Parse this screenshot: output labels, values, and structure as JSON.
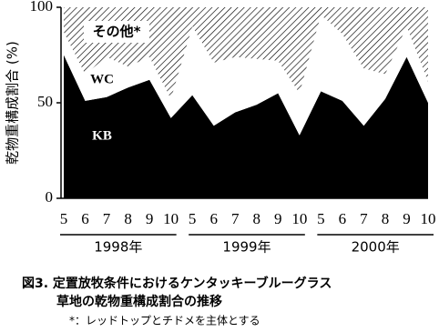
{
  "chart_data": {
    "type": "stacked-area",
    "y_label": "乾物重構成割合 (%)",
    "categories": [
      "5",
      "6",
      "7",
      "8",
      "9",
      "10",
      "5",
      "6",
      "7",
      "8",
      "9",
      "10",
      "5",
      "6",
      "7",
      "8",
      "9",
      "10"
    ],
    "group_labels": [
      "1998年",
      "1999年",
      "2000年"
    ],
    "series": [
      {
        "name": "KB",
        "color": "#000000",
        "values": [
          75,
          51,
          53,
          58,
          62,
          42,
          54,
          38,
          45,
          49,
          55,
          33,
          56,
          51,
          38,
          52,
          74,
          50
        ]
      },
      {
        "name": "WC",
        "color": "#ffffff",
        "values": [
          12,
          14,
          21,
          11,
          12,
          10,
          36,
          33,
          29,
          24,
          17,
          22,
          40,
          35,
          30,
          13,
          16,
          11
        ]
      },
      {
        "name": "その他*",
        "color": "#000000",
        "pattern": "hatch",
        "values": [
          13,
          35,
          26,
          31,
          26,
          48,
          10,
          29,
          26,
          27,
          28,
          45,
          4,
          14,
          32,
          35,
          10,
          39
        ]
      }
    ],
    "ylim": [
      0,
      100
    ],
    "yticks": [
      0,
      50,
      100
    ],
    "caption": [
      "図3. 定置放牧条件におけるケンタッキーブルーグラス",
      "草地の乾物重構成割合の推移",
      "*：レッドトップとチドメを主体とする"
    ]
  }
}
